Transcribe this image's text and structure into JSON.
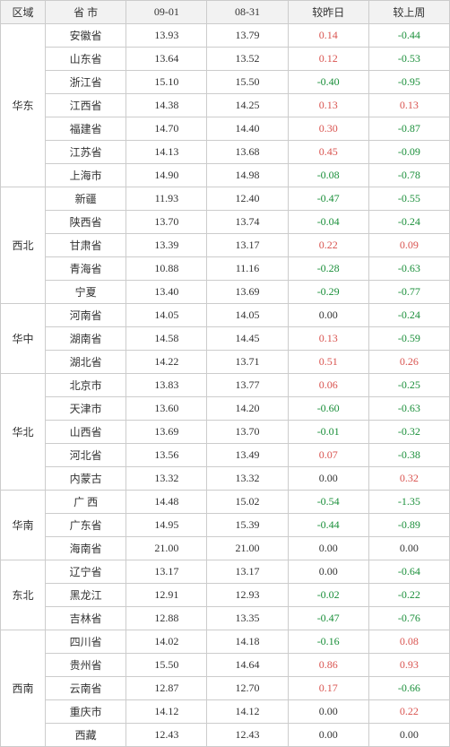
{
  "headers": {
    "region": "区域",
    "province": "省 市",
    "d1": "09-01",
    "d2": "08-31",
    "vs_day": "较昨日",
    "vs_week": "较上周"
  },
  "colors": {
    "positive": "#d9534f",
    "negative": "#1a8f3a",
    "neutral": "#333333",
    "header_bg": "#f2f2f2",
    "border": "#cccccc"
  },
  "regions": [
    {
      "name": "华东",
      "rows": [
        {
          "prov": "安徽省",
          "d1": "13.93",
          "d2": "13.79",
          "vday": "0.14",
          "vweek": "-0.44"
        },
        {
          "prov": "山东省",
          "d1": "13.64",
          "d2": "13.52",
          "vday": "0.12",
          "vweek": "-0.53"
        },
        {
          "prov": "浙江省",
          "d1": "15.10",
          "d2": "15.50",
          "vday": "-0.40",
          "vweek": "-0.95"
        },
        {
          "prov": "江西省",
          "d1": "14.38",
          "d2": "14.25",
          "vday": "0.13",
          "vweek": "0.13"
        },
        {
          "prov": "福建省",
          "d1": "14.70",
          "d2": "14.40",
          "vday": "0.30",
          "vweek": "-0.87"
        },
        {
          "prov": "江苏省",
          "d1": "14.13",
          "d2": "13.68",
          "vday": "0.45",
          "vweek": "-0.09"
        },
        {
          "prov": "上海市",
          "d1": "14.90",
          "d2": "14.98",
          "vday": "-0.08",
          "vweek": "-0.78"
        }
      ]
    },
    {
      "name": "西北",
      "rows": [
        {
          "prov": "新疆",
          "d1": "11.93",
          "d2": "12.40",
          "vday": "-0.47",
          "vweek": "-0.55"
        },
        {
          "prov": "陕西省",
          "d1": "13.70",
          "d2": "13.74",
          "vday": "-0.04",
          "vweek": "-0.24"
        },
        {
          "prov": "甘肃省",
          "d1": "13.39",
          "d2": "13.17",
          "vday": "0.22",
          "vweek": "0.09"
        },
        {
          "prov": "青海省",
          "d1": "10.88",
          "d2": "11.16",
          "vday": "-0.28",
          "vweek": "-0.63"
        },
        {
          "prov": "宁夏",
          "d1": "13.40",
          "d2": "13.69",
          "vday": "-0.29",
          "vweek": "-0.77"
        }
      ]
    },
    {
      "name": "华中",
      "rows": [
        {
          "prov": "河南省",
          "d1": "14.05",
          "d2": "14.05",
          "vday": "0.00",
          "vweek": "-0.24"
        },
        {
          "prov": "湖南省",
          "d1": "14.58",
          "d2": "14.45",
          "vday": "0.13",
          "vweek": "-0.59"
        },
        {
          "prov": "湖北省",
          "d1": "14.22",
          "d2": "13.71",
          "vday": "0.51",
          "vweek": "0.26"
        }
      ]
    },
    {
      "name": "华北",
      "rows": [
        {
          "prov": "北京市",
          "d1": "13.83",
          "d2": "13.77",
          "vday": "0.06",
          "vweek": "-0.25"
        },
        {
          "prov": "天津市",
          "d1": "13.60",
          "d2": "14.20",
          "vday": "-0.60",
          "vweek": "-0.63"
        },
        {
          "prov": "山西省",
          "d1": "13.69",
          "d2": "13.70",
          "vday": "-0.01",
          "vweek": "-0.32"
        },
        {
          "prov": "河北省",
          "d1": "13.56",
          "d2": "13.49",
          "vday": "0.07",
          "vweek": "-0.38"
        },
        {
          "prov": "内蒙古",
          "d1": "13.32",
          "d2": "13.32",
          "vday": "0.00",
          "vweek": "0.32"
        }
      ]
    },
    {
      "name": "华南",
      "rows": [
        {
          "prov": "广 西",
          "d1": "14.48",
          "d2": "15.02",
          "vday": "-0.54",
          "vweek": "-1.35"
        },
        {
          "prov": "广东省",
          "d1": "14.95",
          "d2": "15.39",
          "vday": "-0.44",
          "vweek": "-0.89"
        },
        {
          "prov": "海南省",
          "d1": "21.00",
          "d2": "21.00",
          "vday": "0.00",
          "vweek": "0.00"
        }
      ]
    },
    {
      "name": "东北",
      "rows": [
        {
          "prov": "辽宁省",
          "d1": "13.17",
          "d2": "13.17",
          "vday": "0.00",
          "vweek": "-0.64"
        },
        {
          "prov": "黑龙江",
          "d1": "12.91",
          "d2": "12.93",
          "vday": "-0.02",
          "vweek": "-0.22"
        },
        {
          "prov": "吉林省",
          "d1": "12.88",
          "d2": "13.35",
          "vday": "-0.47",
          "vweek": "-0.76"
        }
      ]
    },
    {
      "name": "西南",
      "rows": [
        {
          "prov": "四川省",
          "d1": "14.02",
          "d2": "14.18",
          "vday": "-0.16",
          "vweek": "0.08"
        },
        {
          "prov": "贵州省",
          "d1": "15.50",
          "d2": "14.64",
          "vday": "0.86",
          "vweek": "0.93"
        },
        {
          "prov": "云南省",
          "d1": "12.87",
          "d2": "12.70",
          "vday": "0.17",
          "vweek": "-0.66"
        },
        {
          "prov": "重庆市",
          "d1": "14.12",
          "d2": "14.12",
          "vday": "0.00",
          "vweek": "0.22"
        },
        {
          "prov": "西藏",
          "d1": "12.43",
          "d2": "12.43",
          "vday": "0.00",
          "vweek": "0.00"
        }
      ]
    }
  ]
}
